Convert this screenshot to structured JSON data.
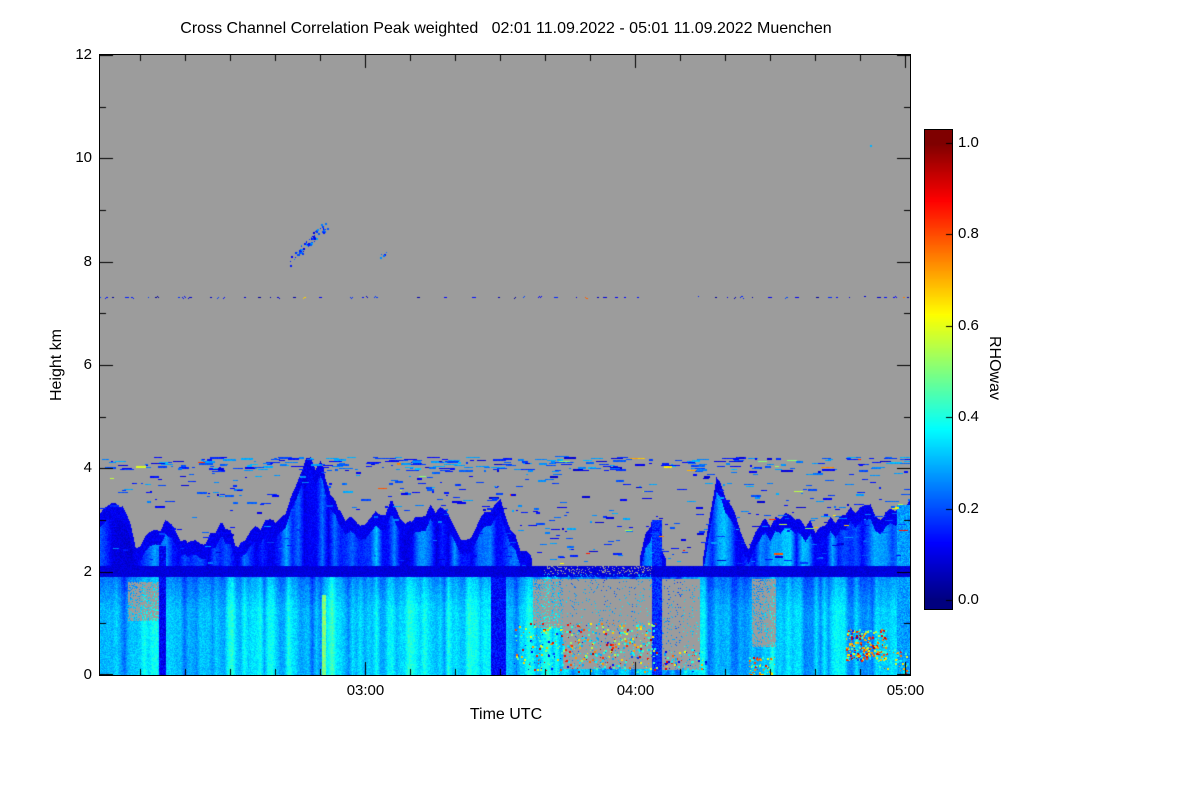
{
  "chart_data": {
    "type": "heatmap",
    "title": "Cross Channel Correlation Peak weighted   02:01 11.09.2022 - 05:01 11.09.2022 Muenchen",
    "station": "Muenchen",
    "time_start": "02:01 11.09.2022",
    "time_end": "05:01 11.09.2022",
    "no_data_color": "#9C9C9C",
    "frame_color": "#000000",
    "x_axis": {
      "label": "Time UTC",
      "range_hours": [
        2.0167,
        5.0167
      ],
      "major_ticks": [
        {
          "hours": 3,
          "label": "03:00"
        },
        {
          "hours": 4,
          "label": "04:00"
        },
        {
          "hours": 5,
          "label": "05:00"
        }
      ],
      "minor_tick_minutes": 10
    },
    "y_axis": {
      "label": "Height km",
      "range_km": [
        0,
        12
      ],
      "major_ticks": [
        {
          "km": 0,
          "label": "0"
        },
        {
          "km": 2,
          "label": "2"
        },
        {
          "km": 4,
          "label": "4"
        },
        {
          "km": 6,
          "label": "6"
        },
        {
          "km": 8,
          "label": "8"
        },
        {
          "km": 10,
          "label": "10"
        },
        {
          "km": 12,
          "label": "12"
        }
      ],
      "minor_tick_km": 1
    },
    "colorbar": {
      "label": "RHOwav",
      "colormap": "jet",
      "value_range": [
        0,
        1
      ],
      "tick_values": [
        0,
        0.2,
        0.4,
        0.6,
        0.8,
        1.0
      ],
      "tick_labels": [
        "0.0",
        "0.2",
        "0.4",
        "0.6",
        "0.8",
        "1.0"
      ],
      "min_color": "#000080",
      "max_color": "#800000"
    },
    "layers": {
      "boundary_layer": {
        "h_range": [
          0,
          1.95
        ],
        "base_value": 0.33,
        "fade_start_km": 1.25,
        "fade_per_km": 0.1
      },
      "capping_band": {
        "h_range": [
          1.9,
          2.11
        ],
        "value": 0.09
      },
      "band_gap": {
        "t": [
          3.66,
          4.06
        ],
        "keep": 0.8
      },
      "cloud_value": {
        "base": 0.2,
        "rim_km": 0.28,
        "rim_value": 0.08
      },
      "top_jitter_km": 0.12,
      "cloud_top_envelope_km": [
        [
          2.017,
          3.2
        ],
        [
          2.06,
          3.35
        ],
        [
          2.1,
          3.3
        ],
        [
          2.15,
          2.5
        ],
        [
          2.2,
          2.8
        ],
        [
          2.28,
          3.0
        ],
        [
          2.34,
          2.45
        ],
        [
          2.4,
          2.6
        ],
        [
          2.47,
          3.0
        ],
        [
          2.53,
          2.5
        ],
        [
          2.6,
          2.9
        ],
        [
          2.66,
          3.0
        ],
        [
          2.72,
          3.3
        ],
        [
          2.78,
          4.15
        ],
        [
          2.84,
          4.05
        ],
        [
          2.9,
          3.15
        ],
        [
          2.97,
          2.9
        ],
        [
          3.03,
          3.05
        ],
        [
          3.1,
          3.3
        ],
        [
          3.17,
          2.85
        ],
        [
          3.24,
          3.25
        ],
        [
          3.3,
          3.1
        ],
        [
          3.37,
          2.5
        ],
        [
          3.44,
          3.1
        ],
        [
          3.5,
          3.3
        ],
        [
          3.56,
          2.6
        ],
        [
          3.62,
          2.15
        ],
        [
          3.7,
          2.05
        ],
        [
          3.8,
          2.0
        ],
        [
          3.9,
          2.05
        ],
        [
          4.0,
          2.0
        ],
        [
          4.06,
          3.0
        ],
        [
          4.12,
          2.05
        ],
        [
          4.2,
          2.1
        ],
        [
          4.25,
          2.2
        ],
        [
          4.3,
          3.9
        ],
        [
          4.36,
          3.25
        ],
        [
          4.42,
          2.4
        ],
        [
          4.47,
          2.9
        ],
        [
          4.53,
          3.05
        ],
        [
          4.6,
          3.1
        ],
        [
          4.66,
          2.85
        ],
        [
          4.72,
          3.0
        ],
        [
          4.78,
          3.1
        ],
        [
          4.85,
          3.3
        ],
        [
          4.92,
          3.05
        ],
        [
          5.017,
          3.35
        ]
      ],
      "erosion_zones": [
        {
          "t": [
            3.73,
            4.06
          ],
          "h": [
            0.12,
            1.85
          ],
          "keep": 0.05
        },
        {
          "t": [
            4.1,
            4.24
          ],
          "h": [
            0.1,
            1.85
          ],
          "keep": 0.06
        },
        {
          "t": [
            4.43,
            4.52
          ],
          "h": [
            0.55,
            1.85
          ],
          "keep": 0.22
        },
        {
          "t": [
            3.62,
            3.73
          ],
          "h": [
            0.9,
            1.85
          ],
          "keep": 0.25
        },
        {
          "t": [
            2.12,
            2.24
          ],
          "h": [
            1.05,
            1.8
          ],
          "keep": 0.3
        }
      ],
      "solid_columns": [
        {
          "t": [
            4.06,
            4.1
          ],
          "h": [
            0,
            3.0
          ],
          "value": 0.17
        },
        {
          "t": [
            3.465,
            3.52
          ],
          "h": [
            0,
            2.1
          ],
          "value": 0.13
        },
        {
          "t": [
            2.838,
            2.852
          ],
          "h": [
            0,
            1.55
          ],
          "value": 0.5
        },
        {
          "t": [
            2.235,
            2.26
          ],
          "h": [
            0,
            2.5
          ],
          "value": 0.12
        },
        {
          "t": [
            4.97,
            5.017
          ],
          "h": [
            0,
            3.3
          ],
          "value": 0.28
        }
      ],
      "scatter_dashes": [
        {
          "t": [
            2.017,
            5.017
          ],
          "h": [
            3.95,
            4.22
          ],
          "count": 300,
          "len": [
            2,
            14
          ],
          "v": [
            0.08,
            0.32
          ],
          "warm_frac": 0.05
        },
        {
          "t": [
            2.017,
            5.017
          ],
          "h": [
            3.2,
            3.95
          ],
          "count": 210,
          "len": [
            2,
            10
          ],
          "v": [
            0.08,
            0.3
          ],
          "warm_frac": 0.04
        },
        {
          "t": [
            3.5,
            5.017
          ],
          "h": [
            2.15,
            3.2
          ],
          "count": 170,
          "len": [
            2,
            9
          ],
          "v": [
            0.08,
            0.3
          ],
          "warm_frac": 0.08
        },
        {
          "t": [
            2.017,
            3.5
          ],
          "h": [
            2.15,
            3.2
          ],
          "count": 45,
          "len": [
            2,
            7
          ],
          "v": [
            0.08,
            0.28
          ],
          "warm_frac": 0.03
        }
      ],
      "dotted_line": {
        "h": 7.3,
        "duty": 0.5,
        "dash": [
          1,
          4
        ],
        "gap": [
          2,
          9
        ],
        "v": [
          0.02,
          0.2
        ],
        "warm_frac": 0.06
      },
      "high_trails": [
        {
          "t": [
            2.72,
            2.86
          ],
          "h": [
            8.0,
            8.75
          ],
          "spread_km": 0.22,
          "count": 70,
          "v": [
            0.08,
            0.3
          ]
        },
        {
          "t": [
            3.05,
            3.08
          ],
          "h": [
            8.05,
            8.2
          ],
          "spread_km": 0.1,
          "count": 8,
          "v": [
            0.08,
            0.28
          ]
        }
      ],
      "isolated_dots": [
        {
          "t": 4.87,
          "h": 10.25,
          "v": 0.3
        }
      ],
      "ground_speckle_zones": [
        {
          "t": [
            3.55,
            4.08
          ],
          "h": [
            0.05,
            1.0
          ],
          "count": 560,
          "v_mix": [
            [
              0.28,
              0.45,
              0.45
            ],
            [
              0.5,
              0.7,
              0.2
            ],
            [
              0.7,
              0.97,
              0.25
            ],
            [
              0.08,
              0.2,
              0.1
            ]
          ]
        },
        {
          "t": [
            4.1,
            4.26
          ],
          "h": [
            0.05,
            0.5
          ],
          "count": 80,
          "v_mix": [
            [
              0.28,
              0.45,
              0.5
            ],
            [
              0.6,
              0.9,
              0.3
            ],
            [
              0.08,
              0.2,
              0.2
            ]
          ]
        },
        {
          "t": [
            4.42,
            4.52
          ],
          "h": [
            0.0,
            0.35
          ],
          "count": 70,
          "v_mix": [
            [
              0.55,
              0.9,
              0.7
            ],
            [
              0.3,
              0.45,
              0.3
            ]
          ]
        },
        {
          "t": [
            4.78,
            4.93
          ],
          "h": [
            0.28,
            0.88
          ],
          "count": 320,
          "v_mix": [
            [
              0.55,
              0.95,
              0.6
            ],
            [
              0.35,
              0.5,
              0.25
            ],
            [
              0.12,
              0.3,
              0.15
            ]
          ]
        },
        {
          "t": [
            4.9,
            5.01
          ],
          "h": [
            0.0,
            0.5
          ],
          "count": 60,
          "v_mix": [
            [
              0.55,
              0.9,
              0.5
            ],
            [
              0.3,
              0.45,
              0.5
            ]
          ]
        }
      ]
    }
  }
}
